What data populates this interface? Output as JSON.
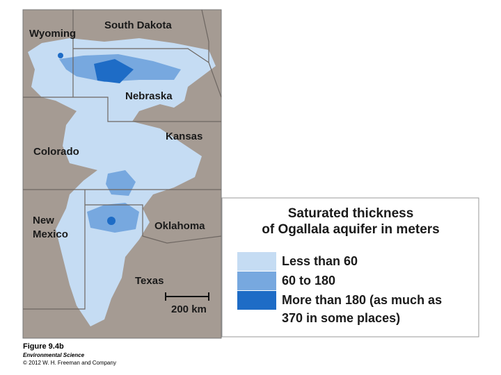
{
  "map": {
    "labels": {
      "south_dakota": "South Dakota",
      "wyoming": "Wyoming",
      "nebraska": "Nebraska",
      "kansas": "Kansas",
      "colorado": "Colorado",
      "new_mexico": [
        "New",
        "Mexico"
      ],
      "oklahoma": "Oklahoma",
      "texas": "Texas"
    },
    "scale": "200 km"
  },
  "legend": {
    "title": [
      "Saturated thickness",
      "of Ogallala aquifer in meters"
    ],
    "items": [
      {
        "label": [
          "Less than 60"
        ],
        "color": "#c5dcf3"
      },
      {
        "label": [
          "60 to 180"
        ],
        "color": "#77a8df"
      },
      {
        "label": [
          "More than 180 (as much as",
          "370 in some places)"
        ],
        "color": "#1e6cc6"
      }
    ]
  },
  "caption": {
    "figure": "Figure 9.4b",
    "book": "Environmental Science",
    "copyright": "© 2012 W. H. Freeman and Company"
  }
}
